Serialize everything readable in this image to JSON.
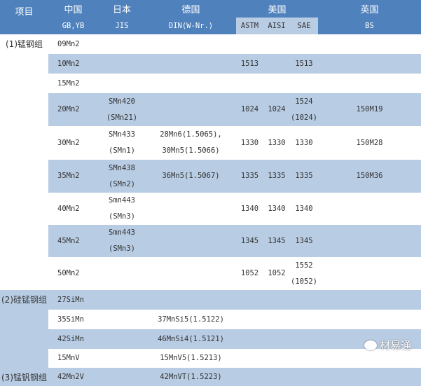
{
  "header": {
    "item": "项目",
    "china": "中国",
    "japan": "日本",
    "germany": "德国",
    "usa": "美国",
    "uk": "英国",
    "china_std": "GB,YB",
    "japan_std": "JIS",
    "germany_std": "DIN(W-Nr.)",
    "astm": "ASTM",
    "aisi": "AISI",
    "sae": "SAE",
    "bs": "BS"
  },
  "groups": [
    {
      "label": "(1)锰钢组"
    },
    {
      "label": "(2)硅锰钢组"
    },
    {
      "label": "(3)锰钒钢组"
    }
  ],
  "rows": [
    {
      "cn": "09Mn2",
      "jp": "",
      "de": "",
      "astm": "",
      "aisi": "",
      "sae": "",
      "bs": ""
    },
    {
      "cn": "10Mn2",
      "jp": "",
      "de": "",
      "astm": "1513",
      "aisi": "",
      "sae": "1513",
      "bs": ""
    },
    {
      "cn": "15Mn2",
      "jp": "",
      "de": "",
      "astm": "",
      "aisi": "",
      "sae": "",
      "bs": ""
    },
    {
      "cn": "20Mn2",
      "jp": "SMn420\n(SMn21)",
      "de": "",
      "astm": "1024",
      "aisi": "1024",
      "sae": "1524\n(1024)",
      "bs": "150M19"
    },
    {
      "cn": "30Mn2",
      "jp": "SMn433\n(SMn1)",
      "de": "28Mn6(1.5065),\n30Mn5(1.5066)",
      "astm": "1330",
      "aisi": "1330",
      "sae": "1330",
      "bs": "150M28"
    },
    {
      "cn": "35Mn2",
      "jp": "SMn438\n(SMn2)",
      "de": "36Mn5(1.5067)",
      "astm": "1335",
      "aisi": "1335",
      "sae": "1335",
      "bs": "150M36"
    },
    {
      "cn": "40Mn2",
      "jp": "Smn443 (SMn3)",
      "de": "",
      "astm": "1340",
      "aisi": "1340",
      "sae": "1340",
      "bs": ""
    },
    {
      "cn": "45Mn2",
      "jp": "Smn443 (SMn3)",
      "de": "",
      "astm": "1345",
      "aisi": "1345",
      "sae": "1345",
      "bs": ""
    },
    {
      "cn": "50Mn2",
      "jp": "",
      "de": "",
      "astm": "1052",
      "aisi": "1052",
      "sae": "1552\n(1052)",
      "bs": ""
    },
    {
      "cn": "27SiMn",
      "jp": "",
      "de": "",
      "astm": "",
      "aisi": "",
      "sae": "",
      "bs": ""
    },
    {
      "cn": "35SiMn",
      "jp": "",
      "de": "37MnSi5(1.5122)",
      "astm": "",
      "aisi": "",
      "sae": "",
      "bs": ""
    },
    {
      "cn": "42SiMn",
      "jp": "",
      "de": "46MnSi4(1.5121)",
      "astm": "",
      "aisi": "",
      "sae": "",
      "bs": ""
    },
    {
      "cn": "15MnV",
      "jp": "",
      "de": "15MnV5(1.5213)",
      "astm": "",
      "aisi": "",
      "sae": "",
      "bs": ""
    },
    {
      "cn": "42Mn2V",
      "jp": "",
      "de": "42MnVT(1.5223)",
      "astm": "",
      "aisi": "",
      "sae": "",
      "bs": ""
    }
  ],
  "watermark": "材易通",
  "colors": {
    "header": "#4f81bd",
    "stripe": "#b8cce4"
  }
}
